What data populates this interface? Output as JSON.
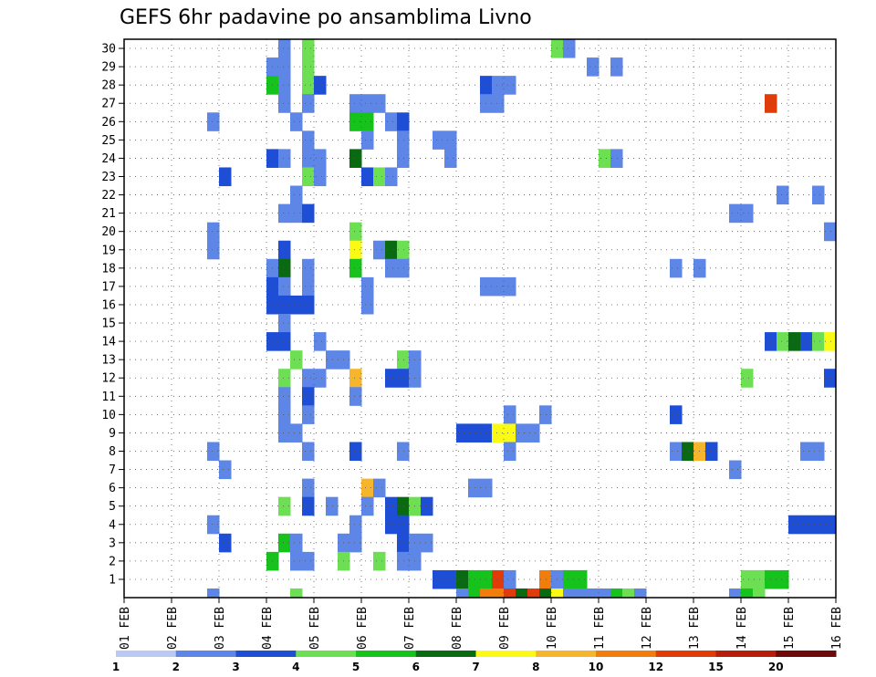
{
  "chart_data": {
    "type": "heatmap",
    "title": "GEFS 6hr padavine po ansamblima Livno",
    "xlabel": "",
    "ylabel": "",
    "x_tick_labels": [
      "01 FEB",
      "02 FEB",
      "03 FEB",
      "04 FEB",
      "05 FEB",
      "06 FEB",
      "07 FEB",
      "08 FEB",
      "09 FEB",
      "10 FEB",
      "11 FEB",
      "12 FEB",
      "13 FEB",
      "14 FEB",
      "15 FEB",
      "16 FEB"
    ],
    "y_tick_labels": [
      "1",
      "2",
      "3",
      "4",
      "5",
      "6",
      "7",
      "8",
      "9",
      "10",
      "11",
      "12",
      "13",
      "14",
      "15",
      "16",
      "17",
      "18",
      "19",
      "20",
      "21",
      "22",
      "23",
      "24",
      "25",
      "26",
      "27",
      "28",
      "29",
      "30"
    ],
    "xlim": [
      0,
      60
    ],
    "ylim": [
      0,
      30
    ],
    "x_units": "6-hour steps from 01 FEB 00Z",
    "grid": true,
    "colorbar": {
      "levels": [
        "1",
        "2",
        "3",
        "4",
        "5",
        "6",
        "7",
        "8",
        "10",
        "12",
        "15",
        "20"
      ],
      "colors": [
        "#b9c9f2",
        "#5e86e6",
        "#1f4ed6",
        "#6ce052",
        "#16c21c",
        "#0a6a12",
        "#fafa14",
        "#f7b52c",
        "#f07d0c",
        "#e03c0a",
        "#b81d0c",
        "#700a0a"
      ]
    },
    "cells": [
      [
        13,
        29,
        1
      ],
      [
        15,
        29,
        3
      ],
      [
        36,
        29,
        3
      ],
      [
        37,
        29,
        1
      ],
      [
        12,
        28,
        1
      ],
      [
        13,
        28,
        1
      ],
      [
        15,
        28,
        3
      ],
      [
        39,
        28,
        1
      ],
      [
        41,
        28,
        1
      ],
      [
        12,
        27,
        4
      ],
      [
        13,
        27,
        1
      ],
      [
        15,
        27,
        3
      ],
      [
        16,
        27,
        2
      ],
      [
        30,
        27,
        2
      ],
      [
        31,
        27,
        1
      ],
      [
        32,
        27,
        1
      ],
      [
        13,
        26,
        1
      ],
      [
        15,
        26,
        1
      ],
      [
        19,
        26,
        1
      ],
      [
        20,
        26,
        1
      ],
      [
        21,
        26,
        1
      ],
      [
        30,
        26,
        1
      ],
      [
        31,
        26,
        1
      ],
      [
        54,
        26,
        9
      ],
      [
        7,
        25,
        1
      ],
      [
        14,
        25,
        1
      ],
      [
        19,
        25,
        4
      ],
      [
        20,
        25,
        4
      ],
      [
        22,
        25,
        1
      ],
      [
        23,
        25,
        2
      ],
      [
        15,
        24,
        1
      ],
      [
        20,
        24,
        1
      ],
      [
        23,
        24,
        1
      ],
      [
        26,
        24,
        1
      ],
      [
        27,
        24,
        1
      ],
      [
        12,
        23,
        2
      ],
      [
        13,
        23,
        1
      ],
      [
        15,
        23,
        1
      ],
      [
        16,
        23,
        1
      ],
      [
        19,
        23,
        5
      ],
      [
        23,
        23,
        1
      ],
      [
        27,
        23,
        1
      ],
      [
        40,
        23,
        3
      ],
      [
        41,
        23,
        1
      ],
      [
        8,
        22,
        2
      ],
      [
        15,
        22,
        3
      ],
      [
        16,
        22,
        1
      ],
      [
        20,
        22,
        2
      ],
      [
        21,
        22,
        3
      ],
      [
        22,
        22,
        1
      ],
      [
        14,
        21,
        1
      ],
      [
        55,
        21,
        1
      ],
      [
        58,
        21,
        1
      ],
      [
        13,
        20,
        1
      ],
      [
        14,
        20,
        1
      ],
      [
        15,
        20,
        2
      ],
      [
        51,
        20,
        1
      ],
      [
        52,
        20,
        1
      ],
      [
        7,
        19,
        1
      ],
      [
        19,
        19,
        3
      ],
      [
        59,
        19,
        1
      ],
      [
        7,
        18,
        1
      ],
      [
        13,
        18,
        2
      ],
      [
        19,
        18,
        6
      ],
      [
        21,
        18,
        1
      ],
      [
        22,
        18,
        5
      ],
      [
        23,
        18,
        3
      ],
      [
        12,
        17,
        1
      ],
      [
        13,
        17,
        5
      ],
      [
        15,
        17,
        1
      ],
      [
        19,
        17,
        4
      ],
      [
        22,
        17,
        1
      ],
      [
        23,
        17,
        1
      ],
      [
        46,
        17,
        1
      ],
      [
        48,
        17,
        1
      ],
      [
        12,
        16,
        2
      ],
      [
        13,
        16,
        1
      ],
      [
        15,
        16,
        1
      ],
      [
        20,
        16,
        1
      ],
      [
        30,
        16,
        1
      ],
      [
        31,
        16,
        1
      ],
      [
        32,
        16,
        1
      ],
      [
        12,
        15,
        2
      ],
      [
        13,
        15,
        2
      ],
      [
        14,
        15,
        2
      ],
      [
        15,
        15,
        2
      ],
      [
        20,
        15,
        1
      ],
      [
        13,
        14,
        1
      ],
      [
        12,
        13,
        2
      ],
      [
        13,
        13,
        2
      ],
      [
        16,
        13,
        1
      ],
      [
        54,
        13,
        2
      ],
      [
        55,
        13,
        3
      ],
      [
        56,
        13,
        5
      ],
      [
        57,
        13,
        2
      ],
      [
        58,
        13,
        3
      ],
      [
        59,
        13,
        6
      ],
      [
        14,
        12,
        3
      ],
      [
        17,
        12,
        1
      ],
      [
        18,
        12,
        1
      ],
      [
        23,
        12,
        3
      ],
      [
        24,
        12,
        1
      ],
      [
        13,
        11,
        3
      ],
      [
        15,
        11,
        1
      ],
      [
        16,
        11,
        1
      ],
      [
        19,
        11,
        7
      ],
      [
        22,
        11,
        2
      ],
      [
        23,
        11,
        2
      ],
      [
        24,
        11,
        1
      ],
      [
        52,
        11,
        3
      ],
      [
        59,
        11,
        2
      ],
      [
        13,
        10,
        1
      ],
      [
        15,
        10,
        2
      ],
      [
        19,
        10,
        1
      ],
      [
        13,
        9,
        1
      ],
      [
        15,
        9,
        1
      ],
      [
        32,
        9,
        1
      ],
      [
        35,
        9,
        1
      ],
      [
        46,
        9,
        2
      ],
      [
        13,
        8,
        1
      ],
      [
        14,
        8,
        1
      ],
      [
        28,
        8,
        2
      ],
      [
        29,
        8,
        2
      ],
      [
        30,
        8,
        2
      ],
      [
        31,
        8,
        6
      ],
      [
        32,
        8,
        6
      ],
      [
        33,
        8,
        1
      ],
      [
        34,
        8,
        1
      ],
      [
        7,
        7,
        1
      ],
      [
        15,
        7,
        1
      ],
      [
        19,
        7,
        2
      ],
      [
        23,
        7,
        1
      ],
      [
        32,
        7,
        1
      ],
      [
        46,
        7,
        1
      ],
      [
        47,
        7,
        5
      ],
      [
        48,
        7,
        7
      ],
      [
        49,
        7,
        2
      ],
      [
        57,
        7,
        1
      ],
      [
        58,
        7,
        1
      ],
      [
        8,
        6,
        1
      ],
      [
        51,
        6,
        1
      ],
      [
        15,
        5,
        1
      ],
      [
        20,
        5,
        7
      ],
      [
        21,
        5,
        1
      ],
      [
        29,
        5,
        1
      ],
      [
        30,
        5,
        1
      ],
      [
        13,
        4,
        3
      ],
      [
        15,
        4,
        2
      ],
      [
        17,
        4,
        1
      ],
      [
        20,
        4,
        1
      ],
      [
        22,
        4,
        2
      ],
      [
        23,
        4,
        5
      ],
      [
        24,
        4,
        3
      ],
      [
        25,
        4,
        2
      ],
      [
        7,
        3,
        1
      ],
      [
        19,
        3,
        1
      ],
      [
        22,
        3,
        2
      ],
      [
        23,
        3,
        2
      ],
      [
        56,
        3,
        2
      ],
      [
        57,
        3,
        2
      ],
      [
        58,
        3,
        2
      ],
      [
        59,
        3,
        2
      ],
      [
        8,
        2,
        2
      ],
      [
        13,
        2,
        4
      ],
      [
        14,
        2,
        1
      ],
      [
        18,
        2,
        1
      ],
      [
        19,
        2,
        1
      ],
      [
        23,
        2,
        2
      ],
      [
        24,
        2,
        1
      ],
      [
        25,
        2,
        1
      ],
      [
        12,
        1,
        4
      ],
      [
        14,
        1,
        1
      ],
      [
        15,
        1,
        1
      ],
      [
        18,
        1,
        3
      ],
      [
        21,
        1,
        3
      ],
      [
        23,
        1,
        1
      ],
      [
        24,
        1,
        1
      ],
      [
        26,
        0,
        2
      ],
      [
        27,
        0,
        2
      ],
      [
        28,
        0,
        5
      ],
      [
        29,
        0,
        4
      ],
      [
        30,
        0,
        4
      ],
      [
        31,
        0,
        9
      ],
      [
        32,
        0,
        1
      ],
      [
        35,
        0,
        8
      ],
      [
        36,
        0,
        1
      ],
      [
        37,
        0,
        4
      ],
      [
        38,
        0,
        4
      ],
      [
        52,
        0,
        3
      ],
      [
        53,
        0,
        3
      ],
      [
        54,
        0,
        4
      ],
      [
        55,
        0,
        4
      ]
    ],
    "bottom_strip": [
      [
        7,
        1
      ],
      [
        14,
        3
      ],
      [
        28,
        1
      ],
      [
        29,
        4
      ],
      [
        30,
        8
      ],
      [
        31,
        8
      ],
      [
        32,
        9
      ],
      [
        33,
        5
      ],
      [
        34,
        9
      ],
      [
        35,
        5
      ],
      [
        36,
        6
      ],
      [
        37,
        1
      ],
      [
        38,
        1
      ],
      [
        39,
        1
      ],
      [
        40,
        1
      ],
      [
        41,
        4
      ],
      [
        42,
        3
      ],
      [
        43,
        1
      ],
      [
        51,
        1
      ],
      [
        52,
        4
      ],
      [
        53,
        3
      ]
    ]
  }
}
